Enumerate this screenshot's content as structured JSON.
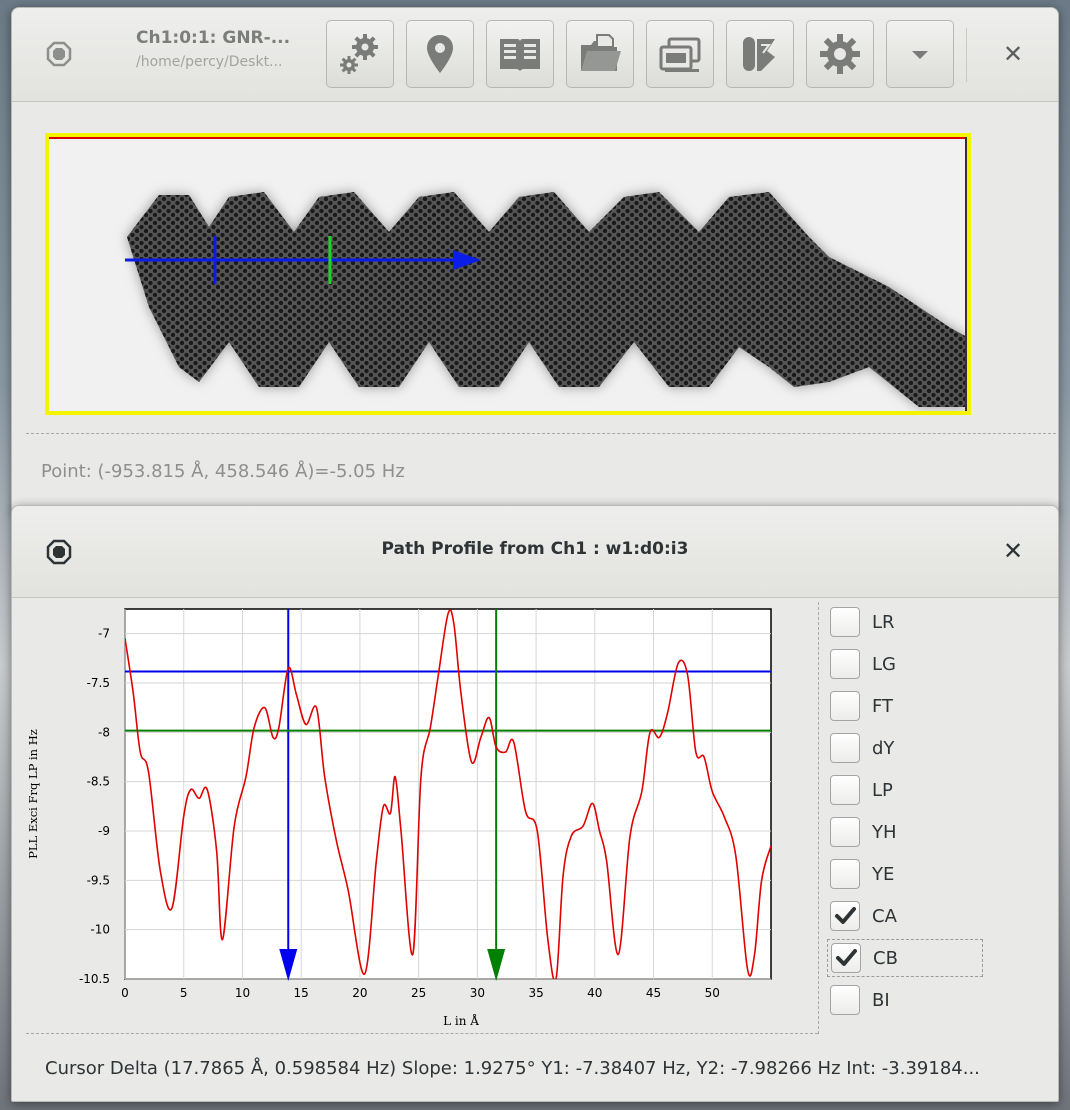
{
  "main_window": {
    "title": "Ch1:0:1: GNR-...",
    "subtitle": "/home/percy/Deskt...",
    "toolbar": [
      {
        "name": "preferences-gears-button",
        "icon": "gears-icon"
      },
      {
        "name": "location-marker-button",
        "icon": "map-pin-icon"
      },
      {
        "name": "book-view-button",
        "icon": "open-book-icon"
      },
      {
        "name": "open-folder-button",
        "icon": "folder-open-icon"
      },
      {
        "name": "window-stack-button",
        "icon": "windows-stack-icon"
      },
      {
        "name": "probe-tool-button",
        "icon": "probe-tip-icon"
      },
      {
        "name": "settings-gear-button",
        "icon": "gear-icon"
      },
      {
        "name": "dropdown-menu-button",
        "icon": "caret-down-icon"
      }
    ],
    "status": "Point: (-953.815 Å, 458.546 Å)=-5.05 Hz"
  },
  "profile_window": {
    "title": "Path Profile from Ch1 : w1:d0:i3",
    "cursor_delta": "Cursor Delta (17.7865 Å, 0.598584 Hz) Slope: 1.9275°  Y1: -7.38407 Hz, Y2: -7.98266 Hz  Int: -3.39184...",
    "channels": [
      {
        "label": "LR",
        "checked": false
      },
      {
        "label": "LG",
        "checked": false
      },
      {
        "label": "FT",
        "checked": false
      },
      {
        "label": "dY",
        "checked": false
      },
      {
        "label": "LP",
        "checked": false
      },
      {
        "label": "YH",
        "checked": false
      },
      {
        "label": "YE",
        "checked": false
      },
      {
        "label": "CA",
        "checked": true
      },
      {
        "label": "CB",
        "checked": true
      },
      {
        "label": "BI",
        "checked": false
      }
    ],
    "focused_channel": "CB"
  },
  "colors": {
    "trace": "#e00000",
    "cursor_a": "#0000ee",
    "cursor_b": "#008000",
    "scan_border": "#f4f400",
    "path_line": "#0a1ee8"
  },
  "chart_data": {
    "type": "line",
    "xlabel": "L in Å",
    "ylabel": "PLL Exci Frq LP in Hz",
    "xlim": [
      0,
      55
    ],
    "ylim": [
      -10.5,
      -6.75
    ],
    "xticks": [
      0,
      5,
      10,
      15,
      20,
      25,
      30,
      35,
      40,
      45,
      50
    ],
    "yticks": [
      -7,
      -7.5,
      -8,
      -8.5,
      -9,
      -9.5,
      -10,
      -10.5
    ],
    "grid": true,
    "series": [
      {
        "x": [
          0,
          0.7,
          1.3,
          2,
          3,
          4,
          5,
          5.6,
          6.3,
          7,
          7.8,
          8.3,
          9.3,
          10.3,
          11,
          11.9,
          12.6,
          13.1,
          13.9,
          14.6,
          15.4,
          16.3,
          17,
          18,
          19,
          20.4,
          21.4,
          22,
          22.6,
          23,
          23.5,
          24.5,
          25.2,
          26,
          26.7,
          27.5,
          28,
          28.6,
          29.5,
          30.3,
          31,
          31.6,
          32.4,
          33.1,
          34.1,
          35.1,
          36,
          36.7,
          37.3,
          38,
          39,
          39.8,
          40.4,
          41,
          42,
          43,
          44,
          44.7,
          45.5,
          46.2,
          47.1,
          47.9,
          48.6,
          49.3,
          50,
          51,
          52,
          53,
          53.6,
          54.2,
          55
        ],
        "values": [
          -7.05,
          -7.6,
          -8.2,
          -8.4,
          -9.4,
          -9.78,
          -8.85,
          -8.58,
          -8.67,
          -8.58,
          -9.2,
          -10.1,
          -8.95,
          -8.45,
          -7.95,
          -7.75,
          -8.05,
          -7.95,
          -7.35,
          -7.62,
          -7.92,
          -7.75,
          -8.45,
          -9.1,
          -9.6,
          -10.45,
          -9.3,
          -8.75,
          -8.82,
          -8.45,
          -9.0,
          -10.25,
          -8.45,
          -7.95,
          -7.4,
          -6.8,
          -6.9,
          -7.6,
          -8.3,
          -8.05,
          -7.85,
          -8.15,
          -8.2,
          -8.1,
          -8.8,
          -9.0,
          -10.1,
          -10.5,
          -9.45,
          -9.05,
          -8.95,
          -8.72,
          -9.0,
          -9.3,
          -10.25,
          -9.05,
          -8.6,
          -8.0,
          -8.05,
          -7.8,
          -7.3,
          -7.42,
          -8.2,
          -8.25,
          -8.6,
          -8.85,
          -9.25,
          -10.4,
          -10.25,
          -9.5,
          -9.15
        ]
      }
    ],
    "cursors": [
      {
        "x": 13.9,
        "y": -7.38407
      },
      {
        "x": 31.6,
        "y": -7.98266
      }
    ]
  }
}
